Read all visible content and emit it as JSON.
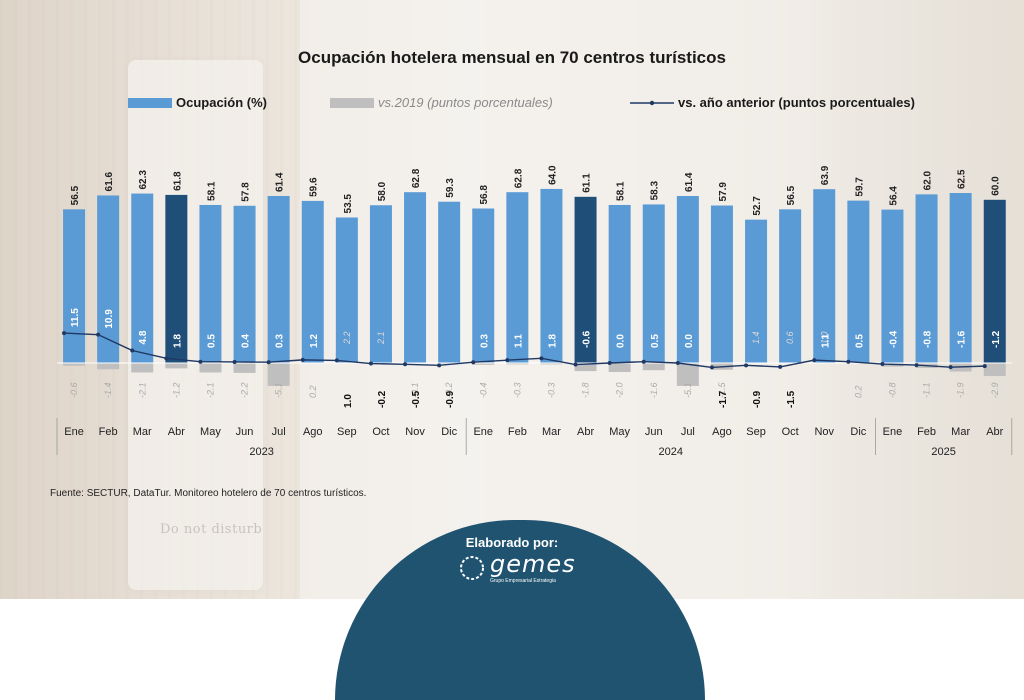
{
  "title": "Ocupación hotelera mensual en 70 centros turísticos",
  "legend": {
    "occupancy": "Ocupación (%)",
    "vs2019": "vs.2019 (puntos porcentuales)",
    "vs_prev": "vs. año anterior (puntos porcentuales)"
  },
  "source": "Fuente: SECTUR, DataTur. Monitoreo hotelero de 70 centros turísticos.",
  "footer": {
    "elaborated": "Elaborado por:",
    "brand": "gemes",
    "brand_sub": "Grupo Empresarial Estrategia"
  },
  "background_sign": "Do not disturb",
  "colors": {
    "bar": "#5b9bd5",
    "bar_highlight": "#1f4e79",
    "bar_2019": "#bfbfbf",
    "line": "#1f3864"
  },
  "chart_data": {
    "type": "bar",
    "title": "Ocupación hotelera mensual en 70 centros turísticos",
    "categories": [
      "Ene",
      "Feb",
      "Mar",
      "Abr",
      "May",
      "Jun",
      "Jul",
      "Ago",
      "Sep",
      "Oct",
      "Nov",
      "Dic",
      "Ene",
      "Feb",
      "Mar",
      "Abr",
      "May",
      "Jun",
      "Jul",
      "Ago",
      "Sep",
      "Oct",
      "Nov",
      "Dic",
      "Ene",
      "Feb",
      "Mar",
      "Abr"
    ],
    "years": [
      {
        "label": "2023",
        "start": 0,
        "end": 11
      },
      {
        "label": "2024",
        "start": 12,
        "end": 23
      },
      {
        "label": "2025",
        "start": 24,
        "end": 27
      }
    ],
    "highlight_indices": [
      3,
      15,
      27
    ],
    "series": [
      {
        "name": "Ocupación (%)",
        "type": "bar",
        "values": [
          56.5,
          61.6,
          62.3,
          61.8,
          58.1,
          57.8,
          61.4,
          59.6,
          53.5,
          58.0,
          62.8,
          59.3,
          56.8,
          62.8,
          64.0,
          61.1,
          58.1,
          58.3,
          61.4,
          57.9,
          52.7,
          56.5,
          63.9,
          59.7,
          56.4,
          62.0,
          62.5,
          60.0
        ]
      },
      {
        "name": "vs.2019 (puntos porcentuales)",
        "type": "bar",
        "values": [
          -0.6,
          -1.4,
          -2.1,
          -1.2,
          -2.1,
          -2.2,
          -5.1,
          0.2,
          2.2,
          2.1,
          -0.1,
          -0.2,
          -0.4,
          -0.3,
          -0.3,
          -1.8,
          -2.0,
          -1.6,
          -5.1,
          -1.5,
          1.4,
          0.6,
          1.0,
          0.2,
          -0.8,
          -1.1,
          -1.9,
          -2.9
        ]
      },
      {
        "name": "vs. año anterior (puntos porcentuales)",
        "type": "line",
        "values": [
          11.5,
          10.9,
          4.8,
          1.8,
          0.5,
          0.4,
          0.3,
          1.2,
          1.0,
          -0.2,
          -0.5,
          -0.9,
          0.3,
          1.1,
          1.8,
          -0.6,
          0.0,
          0.5,
          0.0,
          -1.7,
          -0.9,
          -1.5,
          1.1,
          0.5,
          -0.4,
          -0.8,
          -1.6,
          -1.2
        ]
      }
    ]
  }
}
